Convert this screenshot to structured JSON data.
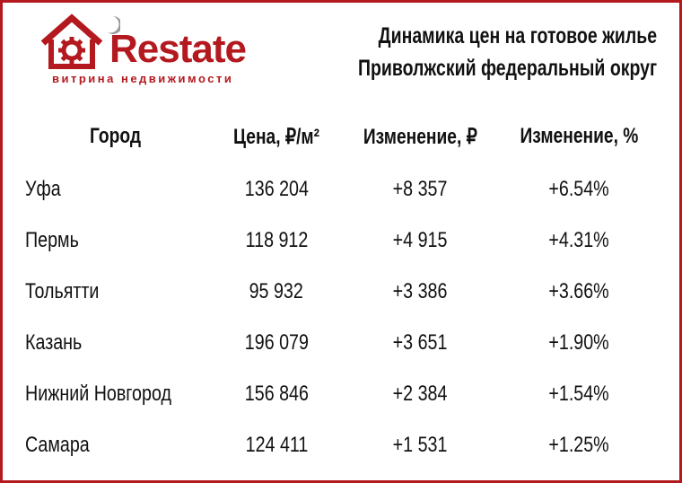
{
  "brand": {
    "name": "Restate",
    "tagline": "витрина недвижимости",
    "accent_color": "#b3191e"
  },
  "title": {
    "line1": "Динамика цен на готовое жилье",
    "line2": "Приволжский федеральный округ"
  },
  "chart_data": {
    "type": "table",
    "columns": [
      "Город",
      "Цена, ₽/м²",
      "Изменение, ₽",
      "Изменение, %"
    ],
    "rows": [
      [
        "Уфа",
        "136 204",
        "+8 357",
        "+6.54%"
      ],
      [
        "Пермь",
        "118 912",
        "+4 915",
        "+4.31%"
      ],
      [
        "Тольятти",
        "95 932",
        "+3 386",
        "+3.66%"
      ],
      [
        "Казань",
        "196 079",
        "+3 651",
        "+1.90%"
      ],
      [
        "Нижний Новгород",
        "156 846",
        "+2 384",
        "+1.54%"
      ],
      [
        "Самара",
        "124 411",
        "+1 531",
        "+1.25%"
      ]
    ]
  }
}
